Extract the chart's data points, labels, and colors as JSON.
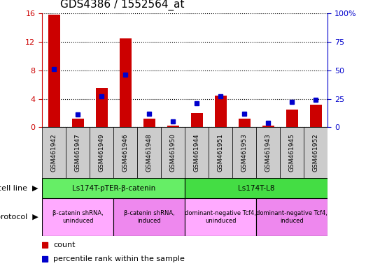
{
  "title": "GDS4386 / 1552564_at",
  "samples": [
    "GSM461942",
    "GSM461947",
    "GSM461949",
    "GSM461946",
    "GSM461948",
    "GSM461950",
    "GSM461944",
    "GSM461951",
    "GSM461953",
    "GSM461943",
    "GSM461945",
    "GSM461952"
  ],
  "counts": [
    15.8,
    1.2,
    5.5,
    12.5,
    1.2,
    0.2,
    2.0,
    4.5,
    1.2,
    0.2,
    2.5,
    3.2
  ],
  "percentiles": [
    51,
    11,
    27,
    46,
    12,
    5,
    21,
    27,
    12,
    4,
    22,
    24
  ],
  "ylim_left": [
    0,
    16
  ],
  "ylim_right": [
    0,
    100
  ],
  "yticks_left": [
    0,
    4,
    8,
    12,
    16
  ],
  "yticks_right": [
    0,
    25,
    50,
    75,
    100
  ],
  "ytick_labels_right": [
    "0",
    "25",
    "50",
    "75",
    "100%"
  ],
  "bar_color": "#cc0000",
  "dot_color": "#0000cc",
  "cell_line_groups": [
    {
      "label": "Ls174T-pTER-β-catenin",
      "start": 0,
      "end": 6,
      "color": "#66ee66"
    },
    {
      "label": "Ls174T-L8",
      "start": 6,
      "end": 12,
      "color": "#44dd44"
    }
  ],
  "protocol_groups": [
    {
      "label": "β-catenin shRNA,\nuninduced",
      "start": 0,
      "end": 3,
      "color": "#ffaaff"
    },
    {
      "label": "β-catenin shRNA,\ninduced",
      "start": 3,
      "end": 6,
      "color": "#ee88ee"
    },
    {
      "label": "dominant-negative Tcf4,\nuninduced",
      "start": 6,
      "end": 9,
      "color": "#ffaaff"
    },
    {
      "label": "dominant-negative Tcf4,\ninduced",
      "start": 9,
      "end": 12,
      "color": "#ee88ee"
    }
  ],
  "cell_line_label": "cell line",
  "protocol_label": "protocol",
  "legend_count": "count",
  "legend_percentile": "percentile rank within the sample",
  "bar_width": 0.5,
  "bg_color": "#ffffff",
  "tick_label_color_left": "#cc0000",
  "tick_label_color_right": "#0000cc",
  "xtick_bg_color": "#cccccc",
  "title_fontsize": 11,
  "axis_fontsize": 8,
  "legend_fontsize": 8
}
